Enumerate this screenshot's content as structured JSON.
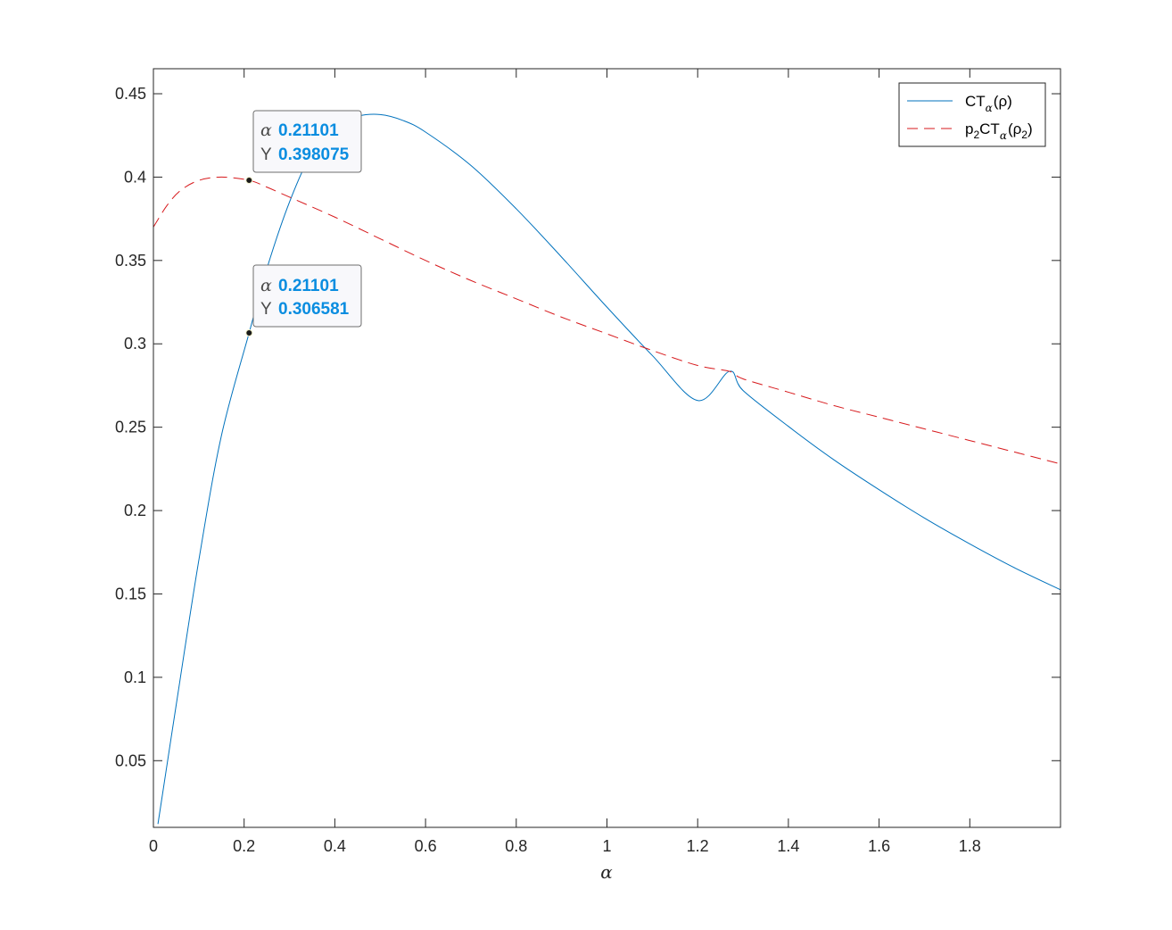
{
  "chart_data": {
    "type": "line",
    "xlabel": "α",
    "ylabel": "",
    "xlim": [
      0,
      2
    ],
    "ylim": [
      0.01,
      0.465
    ],
    "xticks": [
      0,
      0.2,
      0.4,
      0.6,
      0.8,
      1,
      1.2,
      1.4,
      1.6,
      1.8
    ],
    "xtick_labels": [
      "0",
      "0.2",
      "0.4",
      "0.6",
      "0.8",
      "1",
      "1.2",
      "1.4",
      "1.6",
      "1.8"
    ],
    "yticks": [
      0.05,
      0.1,
      0.15,
      0.2,
      0.25,
      0.3,
      0.35,
      0.4,
      0.45
    ],
    "ytick_labels": [
      "0.05",
      "0.1",
      "0.15",
      "0.2",
      "0.25",
      "0.3",
      "0.35",
      "0.4",
      "0.45"
    ],
    "grid": false,
    "legend_position": "top-right",
    "series": [
      {
        "name": "CT_α(ρ)",
        "label_main": "CT",
        "label_sub": "α",
        "label_tail": "(ρ)",
        "color": "#0072BD",
        "style": "solid",
        "x": [
          0.01,
          0.05,
          0.1,
          0.15,
          0.21101,
          0.25,
          0.3,
          0.35,
          0.4,
          0.45,
          0.5,
          0.55,
          0.6,
          0.7,
          0.8,
          0.9,
          1.0,
          1.1,
          1.2,
          1.27,
          1.3,
          1.4,
          1.5,
          1.6,
          1.7,
          1.8,
          1.9,
          2.0
        ],
        "y": [
          0.012,
          0.083,
          0.17,
          0.245,
          0.306581,
          0.345,
          0.385,
          0.415,
          0.431,
          0.4365,
          0.4375,
          0.434,
          0.427,
          0.407,
          0.381,
          0.352,
          0.322,
          0.293,
          0.266,
          0.2835,
          0.272,
          0.2505,
          0.2305,
          0.2125,
          0.1955,
          0.18,
          0.1655,
          0.1525
        ]
      },
      {
        "name": "p_2CT_α(ρ_2)",
        "label_pre": "p",
        "label_pre_sub": "2",
        "label_main": "CT",
        "label_sub": "α",
        "label_tail": "(ρ",
        "label_tail_sub": "2",
        "label_end": ")",
        "color": "#D7191C",
        "style": "dashed",
        "x": [
          0.0,
          0.03,
          0.06,
          0.1,
          0.15,
          0.21101,
          0.25,
          0.3,
          0.4,
          0.5,
          0.6,
          0.7,
          0.8,
          0.9,
          1.0,
          1.1,
          1.2,
          1.27,
          1.3,
          1.4,
          1.5,
          1.6,
          1.7,
          1.8,
          1.9,
          2.0
        ],
        "y": [
          0.37,
          0.383,
          0.392,
          0.398,
          0.4,
          0.398075,
          0.394,
          0.388,
          0.376,
          0.363,
          0.35,
          0.338,
          0.327,
          0.316,
          0.306,
          0.296,
          0.287,
          0.2835,
          0.279,
          0.271,
          0.263,
          0.256,
          0.249,
          0.242,
          0.235,
          0.228
        ]
      }
    ],
    "datatips": [
      {
        "x_key": "α",
        "x_value": "0.21101",
        "y_key": "Y",
        "y_value": "0.398075",
        "x": 0.21101,
        "y": 0.398075
      },
      {
        "x_key": "α",
        "x_value": "0.21101",
        "y_key": "Y",
        "y_value": "0.306581",
        "x": 0.21101,
        "y": 0.306581
      }
    ]
  }
}
